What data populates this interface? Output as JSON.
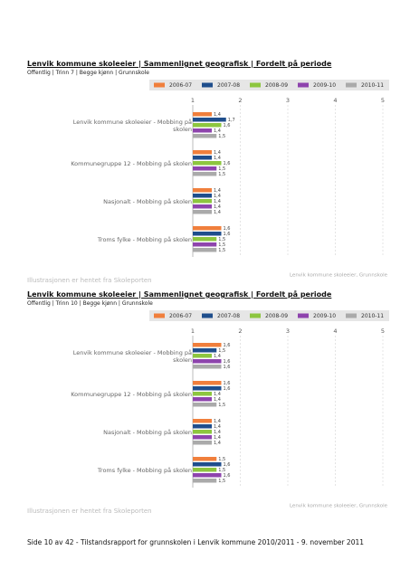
{
  "chart_data": [
    {
      "type": "bar",
      "orientation": "horizontal",
      "title": "Lenvik kommune skoleeier | Sammenlignet geografisk | Fordelt på periode",
      "subtitle": "Offentlig | Trinn 7 | Begge kjønn | Grunnskole",
      "source": "Lenvik kommune skoleeier, Grunnskole",
      "note": "Illustrasjonen er hentet fra Skoleporten",
      "categories": [
        "Lenvik kommune skoleeier - Mobbing på skolen",
        "Kommunegruppe 12 - Mobbing på skolen",
        "Nasjonalt - Mobbing på skolen",
        "Troms fylke - Mobbing på skolen"
      ],
      "series": [
        {
          "name": "2006-07",
          "color": "#f07f3c",
          "values": [
            1.4,
            1.4,
            1.4,
            1.6
          ],
          "value_labels": [
            "1,4",
            "1,4",
            "1,4",
            "1,6"
          ]
        },
        {
          "name": "2007-08",
          "color": "#1f4e8c",
          "values": [
            1.7,
            1.4,
            1.4,
            1.6
          ],
          "value_labels": [
            "1,7",
            "1,4",
            "1,4",
            "1,6"
          ]
        },
        {
          "name": "2008-09",
          "color": "#8dc63f",
          "values": [
            1.6,
            1.6,
            1.4,
            1.5
          ],
          "value_labels": [
            "1,6",
            "1,6",
            "1,4",
            "1,5"
          ]
        },
        {
          "name": "2009-10",
          "color": "#8e44ad",
          "values": [
            1.4,
            1.5,
            1.4,
            1.5
          ],
          "value_labels": [
            "1,4",
            "1,5",
            "1,4",
            "1,5"
          ]
        },
        {
          "name": "2010-11",
          "color": "#aaaaaa",
          "values": [
            1.5,
            1.5,
            1.4,
            1.5
          ],
          "value_labels": [
            "1,5",
            "1,5",
            "1,4",
            "1,5"
          ]
        }
      ],
      "xlim": [
        1,
        5
      ],
      "xticks": [
        1,
        2,
        3,
        4,
        5
      ],
      "grid": true
    },
    {
      "type": "bar",
      "orientation": "horizontal",
      "title": "Lenvik kommune skoleeier | Sammenlignet geografisk | Fordelt på periode",
      "subtitle": "Offentlig | Trinn 10 | Begge kjønn | Grunnskole",
      "source": "Lenvik kommune skoleeier, Grunnskole",
      "note": "Illustrasjonen er hentet fra Skoleporten",
      "categories": [
        "Lenvik kommune skoleeier - Mobbing på skolen",
        "Kommunegruppe 12 - Mobbing på skolen",
        "Nasjonalt - Mobbing på skolen",
        "Troms fylke - Mobbing på skolen"
      ],
      "series": [
        {
          "name": "2006-07",
          "color": "#f07f3c",
          "values": [
            1.6,
            1.6,
            1.4,
            1.5
          ],
          "value_labels": [
            "1,6",
            "1,6",
            "1,4",
            "1,5"
          ]
        },
        {
          "name": "2007-08",
          "color": "#1f4e8c",
          "values": [
            1.5,
            1.6,
            1.4,
            1.6
          ],
          "value_labels": [
            "1,5",
            "1,6",
            "1,4",
            "1,6"
          ]
        },
        {
          "name": "2008-09",
          "color": "#8dc63f",
          "values": [
            1.4,
            1.4,
            1.4,
            1.5
          ],
          "value_labels": [
            "1,4",
            "1,4",
            "1,4",
            "1,5"
          ]
        },
        {
          "name": "2009-10",
          "color": "#8e44ad",
          "values": [
            1.6,
            1.4,
            1.4,
            1.6
          ],
          "value_labels": [
            "1,6",
            "1,4",
            "1,4",
            "1,6"
          ]
        },
        {
          "name": "2010-11",
          "color": "#aaaaaa",
          "values": [
            1.6,
            1.5,
            1.4,
            1.5
          ],
          "value_labels": [
            "1,6",
            "1,5",
            "1,4",
            "1,5"
          ]
        }
      ],
      "xlim": [
        1,
        5
      ],
      "xticks": [
        1,
        2,
        3,
        4,
        5
      ],
      "grid": true
    }
  ],
  "footer": "Side 10 av 42 - Tilstandsrapport for grunnskolen i Lenvik kommune 2010/2011 - 9. november 2011"
}
